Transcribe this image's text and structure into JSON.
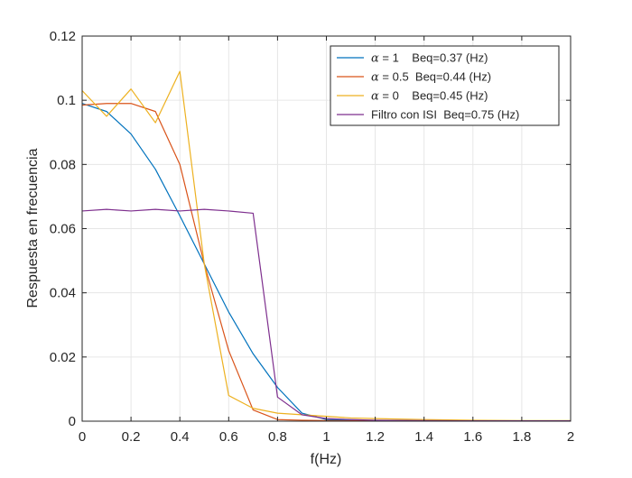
{
  "chart_data": {
    "type": "line",
    "title": "",
    "xlabel": "f(Hz)",
    "ylabel": "Respuesta en frecuencia",
    "xlim": [
      0,
      2
    ],
    "ylim": [
      0,
      0.12
    ],
    "x_ticks": [
      0,
      0.2,
      0.4,
      0.6,
      0.8,
      1,
      1.2,
      1.4,
      1.6,
      1.8,
      2
    ],
    "x_tick_labels": [
      "0",
      "0.2",
      "0.4",
      "0.6",
      "0.8",
      "1",
      "1.2",
      "1.4",
      "1.6",
      "1.8",
      "2"
    ],
    "y_ticks": [
      0,
      0.02,
      0.04,
      0.06,
      0.08,
      0.1,
      0.12
    ],
    "y_tick_labels": [
      "0",
      "0.02",
      "0.04",
      "0.06",
      "0.08",
      "0.1",
      "0.12"
    ],
    "grid": true,
    "legend_position": "top-right",
    "series": [
      {
        "name": "α = 1    Beq=0.37 (Hz)",
        "legend_symbol": "α",
        "legend_rest": " = 1    Beq=0.37 (Hz)",
        "color": "#0072BD",
        "x": [
          0,
          0.1,
          0.2,
          0.3,
          0.4,
          0.5,
          0.6,
          0.7,
          0.8,
          0.9,
          1.0,
          1.1,
          1.2,
          1.4,
          1.6,
          1.8,
          2.0
        ],
        "y": [
          0.099,
          0.0965,
          0.0895,
          0.0785,
          0.064,
          0.049,
          0.034,
          0.021,
          0.0105,
          0.0025,
          0.0005,
          0.0003,
          0.0002,
          0.0001,
          0.0001,
          0.0001,
          0.0001
        ]
      },
      {
        "name": "α = 0.5  Beq=0.44 (Hz)",
        "legend_symbol": "α",
        "legend_rest": " = 0.5  Beq=0.44 (Hz)",
        "color": "#D95319",
        "x": [
          0,
          0.1,
          0.2,
          0.3,
          0.4,
          0.5,
          0.6,
          0.7,
          0.8,
          0.9,
          1.0,
          1.1,
          1.2,
          1.4,
          1.6,
          1.8,
          2.0
        ],
        "y": [
          0.0985,
          0.099,
          0.099,
          0.0965,
          0.08,
          0.049,
          0.022,
          0.0035,
          0.0005,
          0.0003,
          0.0002,
          0.0001,
          0.0001,
          0.0001,
          0.0001,
          0.0001,
          0.0001
        ]
      },
      {
        "name": "α = 0    Beq=0.45 (Hz)",
        "legend_symbol": "α",
        "legend_rest": " = 0    Beq=0.45 (Hz)",
        "color": "#EDB120",
        "x": [
          0,
          0.1,
          0.2,
          0.3,
          0.4,
          0.5,
          0.6,
          0.7,
          0.8,
          0.9,
          1.0,
          1.1,
          1.2,
          1.4,
          1.6,
          1.8,
          2.0
        ],
        "y": [
          0.103,
          0.095,
          0.1035,
          0.093,
          0.109,
          0.049,
          0.008,
          0.004,
          0.0025,
          0.002,
          0.0015,
          0.001,
          0.0008,
          0.0005,
          0.0003,
          0.0002,
          0.0002
        ]
      },
      {
        "name": "Filtro con ISI  Beq=0.75 (Hz)",
        "legend_symbol": "",
        "legend_rest": "Filtro con ISI  Beq=0.75 (Hz)",
        "color": "#7E2F8E",
        "x": [
          0,
          0.1,
          0.2,
          0.3,
          0.4,
          0.5,
          0.6,
          0.7,
          0.8,
          0.9,
          1.0,
          1.1,
          1.2,
          1.4,
          1.6,
          1.8,
          2.0
        ],
        "y": [
          0.0655,
          0.066,
          0.0655,
          0.066,
          0.0655,
          0.066,
          0.0655,
          0.0648,
          0.0075,
          0.002,
          0.0008,
          0.0005,
          0.0003,
          0.0002,
          0.0001,
          0.0001,
          0.0001
        ]
      }
    ]
  }
}
